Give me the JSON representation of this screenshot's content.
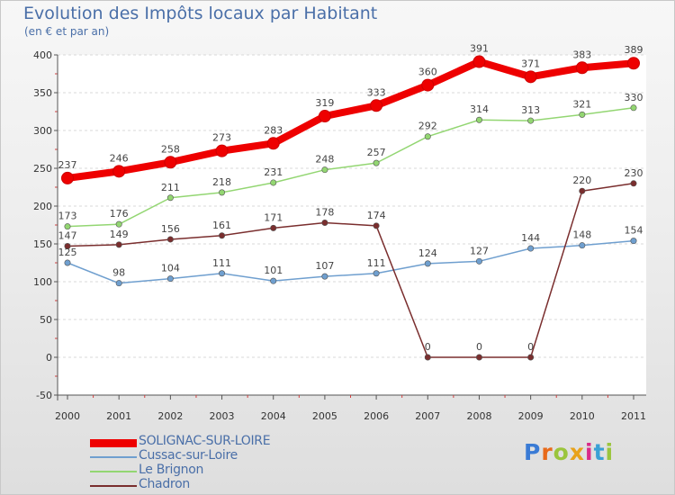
{
  "header": {
    "title": "Evolution des Impôts locaux par Habitant",
    "subtitle": "(en € et par an)"
  },
  "logo": {
    "letters": [
      "P",
      "r",
      "o",
      "x",
      "i",
      "t",
      "i"
    ],
    "colors": [
      "#3a7bd5",
      "#e86a1a",
      "#9bc53d",
      "#e8a21a",
      "#d92a8a",
      "#3aa0d5",
      "#9bc53d"
    ]
  },
  "chart_data": {
    "type": "line",
    "title": "Evolution des Impôts locaux par Habitant",
    "subtitle": "(en € et par an)",
    "xlabel": "",
    "ylabel": "",
    "x": [
      "2000",
      "2001",
      "2002",
      "2003",
      "2004",
      "2005",
      "2006",
      "2007",
      "2008",
      "2009",
      "2010",
      "2011"
    ],
    "ylim": [
      -50,
      400
    ],
    "yticks": [
      -50,
      0,
      50,
      100,
      150,
      200,
      250,
      300,
      350,
      400
    ],
    "grid": "horizontal",
    "legend_position": "bottom-left",
    "series": [
      {
        "name": "SOLIGNAC-SUR-LOIRE",
        "color": "#ee0000",
        "emphasis": true,
        "values": [
          237,
          246,
          258,
          273,
          283,
          319,
          333,
          360,
          391,
          371,
          383,
          389
        ]
      },
      {
        "name": "Cussac-sur-Loire",
        "color": "#6f9fcf",
        "emphasis": false,
        "values": [
          125,
          98,
          104,
          111,
          101,
          107,
          111,
          124,
          127,
          144,
          148,
          154
        ]
      },
      {
        "name": "Le Brignon",
        "color": "#93d672",
        "emphasis": false,
        "values": [
          173,
          176,
          211,
          218,
          231,
          248,
          257,
          292,
          314,
          313,
          321,
          330
        ]
      },
      {
        "name": "Chadron",
        "color": "#7a2e2e",
        "emphasis": false,
        "values": [
          147,
          149,
          156,
          161,
          171,
          178,
          174,
          0,
          0,
          0,
          220,
          230
        ]
      }
    ]
  }
}
